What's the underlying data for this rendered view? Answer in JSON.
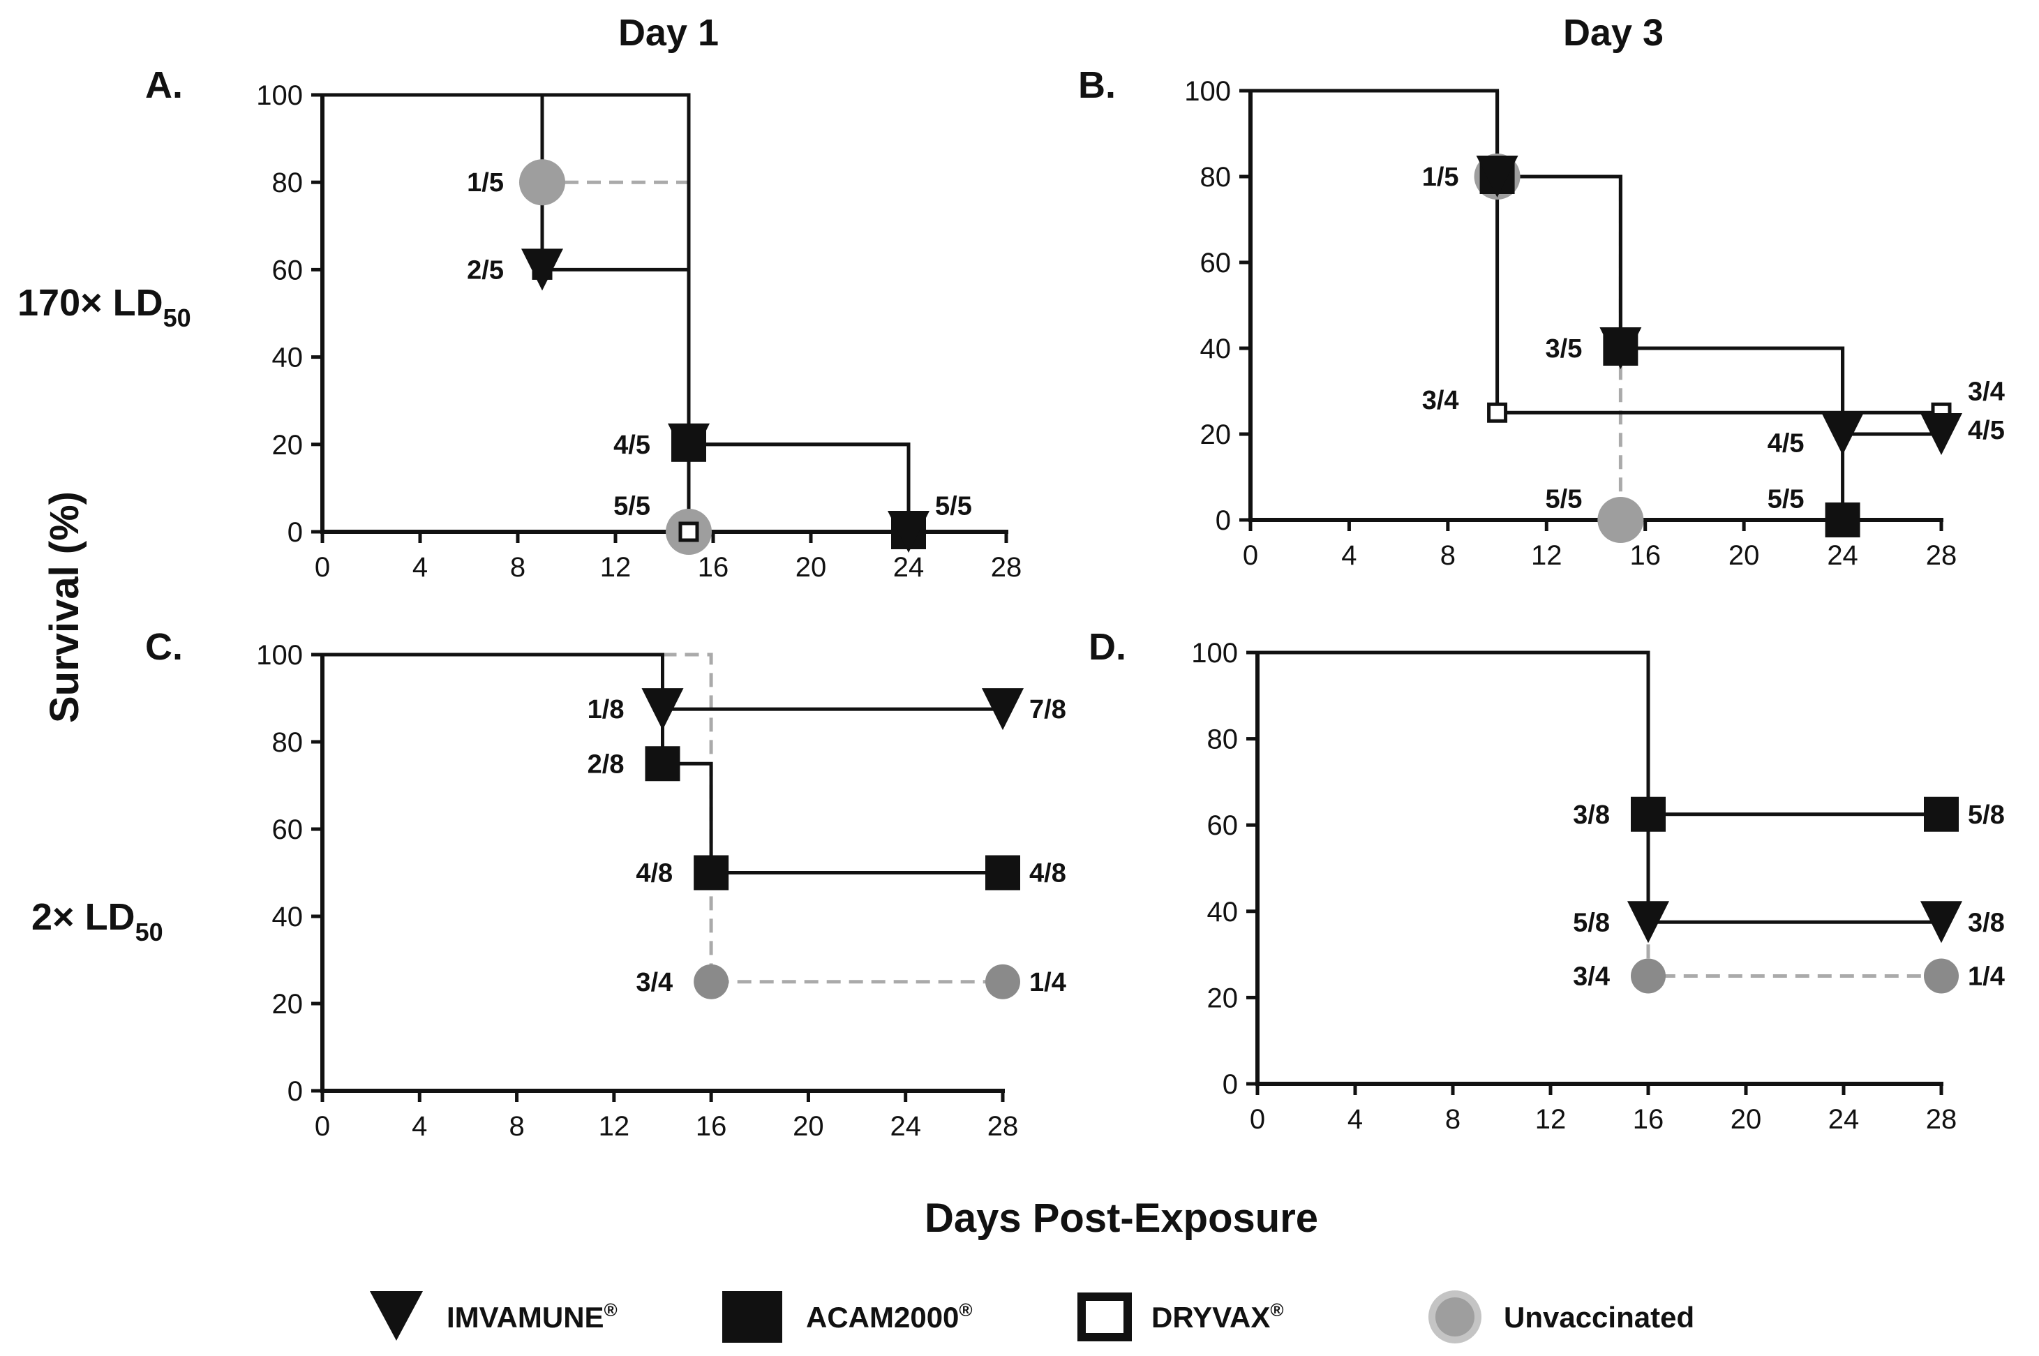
{
  "figure": {
    "column_titles": [
      "Day 1",
      "Day 3"
    ],
    "row_labels": [
      {
        "main": "170× LD",
        "sub": "50"
      },
      {
        "main": "2× LD",
        "sub": "50"
      }
    ],
    "y_axis_title": "Survival (%)",
    "x_axis_title": "Days Post-Exposure",
    "colors": {
      "black": "#111111",
      "gray": "#9e9e9e",
      "gray_dark": "#8a8a8a",
      "gray_ring": "#c4c4c4",
      "dash": "#aaaaaa",
      "white": "#ffffff"
    }
  },
  "legend": {
    "items": [
      {
        "label": "IMVAMUNE",
        "sup": "®",
        "marker": "down-triangle-icon"
      },
      {
        "label": "ACAM2000",
        "sup": "®",
        "marker": "filled-square-icon"
      },
      {
        "label": "DRYVAX",
        "sup": "®",
        "marker": "open-square-icon"
      },
      {
        "label": "Unvaccinated",
        "sup": "",
        "marker": "gray-circle-icon"
      }
    ]
  },
  "chart_data": [
    {
      "panel": "A.",
      "type": "line",
      "step": true,
      "xlabel": "Days Post-Exposure",
      "ylabel": "Survival (%)",
      "xlim": [
        0,
        28
      ],
      "ylim": [
        0,
        100
      ],
      "xticks": [
        0,
        4,
        8,
        12,
        16,
        20,
        24,
        28
      ],
      "yticks": [
        0,
        20,
        40,
        60,
        80,
        100
      ],
      "series": [
        {
          "name": "IMVAMUNE",
          "marker": "triangle",
          "points": [
            [
              0,
              100
            ],
            [
              15,
              100
            ],
            [
              15,
              20
            ],
            [
              24,
              20
            ],
            [
              24,
              0
            ]
          ],
          "marked": [
            [
              15,
              20
            ],
            [
              24,
              0
            ]
          ]
        },
        {
          "name": "ACAM2000",
          "marker": "square",
          "points": [
            [
              0,
              100
            ],
            [
              15,
              100
            ],
            [
              15,
              20
            ],
            [
              24,
              20
            ],
            [
              24,
              0
            ]
          ],
          "marked": [
            [
              15,
              20
            ],
            [
              24,
              0
            ]
          ]
        },
        {
          "name": "DRYVAX",
          "marker": "open-square",
          "points": [
            [
              0,
              100
            ],
            [
              9,
              100
            ],
            [
              9,
              60
            ],
            [
              15,
              60
            ],
            [
              15,
              0
            ]
          ],
          "marked": [
            [
              9,
              60
            ],
            [
              15,
              0
            ]
          ]
        },
        {
          "name": "IMVAMUNE-early",
          "marker": "triangle",
          "points": [
            [
              9,
              60
            ]
          ],
          "marked": [
            [
              9,
              60
            ]
          ]
        },
        {
          "name": "Unvaccinated",
          "marker": "circle",
          "dashed": true,
          "points": [
            [
              9,
              80
            ],
            [
              15,
              80
            ],
            [
              15,
              0
            ]
          ],
          "marked": [
            [
              9,
              80
            ],
            [
              15,
              0
            ]
          ]
        }
      ],
      "annotations": [
        {
          "text": "1/5",
          "x": 9,
          "y": 80,
          "side": "left"
        },
        {
          "text": "2/5",
          "x": 9,
          "y": 60,
          "side": "left"
        },
        {
          "text": "4/5",
          "x": 15,
          "y": 20,
          "side": "left"
        },
        {
          "text": "5/5",
          "x": 15,
          "y": 6,
          "side": "left"
        },
        {
          "text": "5/5",
          "x": 24,
          "y": 6,
          "side": "right"
        }
      ]
    },
    {
      "panel": "B.",
      "type": "line",
      "step": true,
      "xlabel": "Days Post-Exposure",
      "ylabel": "Survival (%)",
      "xlim": [
        0,
        28
      ],
      "ylim": [
        0,
        100
      ],
      "xticks": [
        0,
        4,
        8,
        12,
        16,
        20,
        24,
        28
      ],
      "yticks": [
        0,
        20,
        40,
        60,
        80,
        100
      ],
      "series": [
        {
          "name": "ACAM2000",
          "marker": "square",
          "points": [
            [
              0,
              100
            ],
            [
              10,
              100
            ],
            [
              10,
              80
            ],
            [
              15,
              80
            ],
            [
              15,
              40
            ],
            [
              24,
              40
            ],
            [
              24,
              0
            ]
          ],
          "marked": [
            [
              10,
              80
            ],
            [
              15,
              40
            ],
            [
              24,
              0
            ]
          ]
        },
        {
          "name": "IMVAMUNE",
          "marker": "triangle",
          "points": [
            [
              10,
              80
            ],
            [
              15,
              80
            ],
            [
              15,
              40
            ],
            [
              24,
              40
            ],
            [
              24,
              20
            ],
            [
              28,
              20
            ]
          ],
          "marked": [
            [
              10,
              80
            ],
            [
              15,
              40
            ],
            [
              24,
              20
            ],
            [
              28,
              20
            ]
          ]
        },
        {
          "name": "DRYVAX",
          "marker": "open-square",
          "points": [
            [
              10,
              100
            ],
            [
              10,
              25
            ],
            [
              28,
              25
            ]
          ],
          "marked": [
            [
              10,
              25
            ],
            [
              28,
              25
            ]
          ]
        },
        {
          "name": "Unvaccinated",
          "marker": "circle",
          "dashed": true,
          "points": [
            [
              10,
              80
            ],
            [
              15,
              80
            ],
            [
              15,
              0
            ]
          ],
          "marked": [
            [
              10,
              80
            ],
            [
              15,
              0
            ]
          ]
        },
        {
          "name": "Zero-line",
          "marker": "none",
          "points": [
            [
              0,
              0
            ],
            [
              28,
              0
            ]
          ],
          "marked": []
        }
      ],
      "annotations": [
        {
          "text": "1/5",
          "x": 10,
          "y": 80,
          "side": "left"
        },
        {
          "text": "3/5",
          "x": 15,
          "y": 40,
          "side": "left"
        },
        {
          "text": "3/4",
          "x": 10,
          "y": 28,
          "side": "left"
        },
        {
          "text": "4/5",
          "x": 24,
          "y": 18,
          "side": "left"
        },
        {
          "text": "5/5",
          "x": 15,
          "y": 5,
          "side": "left"
        },
        {
          "text": "5/5",
          "x": 24,
          "y": 5,
          "side": "left"
        },
        {
          "text": "3/4",
          "x": 28,
          "y": 30,
          "side": "right"
        },
        {
          "text": "4/5",
          "x": 28,
          "y": 21,
          "side": "right"
        }
      ]
    },
    {
      "panel": "C.",
      "type": "line",
      "step": true,
      "xlabel": "Days Post-Exposure",
      "ylabel": "Survival (%)",
      "xlim": [
        0,
        28
      ],
      "ylim": [
        0,
        100
      ],
      "xticks": [
        0,
        4,
        8,
        12,
        16,
        20,
        24,
        28
      ],
      "yticks": [
        0,
        20,
        40,
        60,
        80,
        100
      ],
      "series": [
        {
          "name": "IMVAMUNE",
          "marker": "triangle",
          "points": [
            [
              0,
              100
            ],
            [
              14,
              100
            ],
            [
              14,
              87.5
            ],
            [
              28,
              87.5
            ]
          ],
          "marked": [
            [
              14,
              87.5
            ],
            [
              28,
              87.5
            ]
          ]
        },
        {
          "name": "ACAM2000",
          "marker": "square",
          "points": [
            [
              14,
              87.5
            ],
            [
              14,
              75
            ],
            [
              16,
              75
            ],
            [
              16,
              50
            ],
            [
              28,
              50
            ]
          ],
          "marked": [
            [
              14,
              75
            ],
            [
              16,
              50
            ],
            [
              28,
              50
            ]
          ]
        },
        {
          "name": "Unvaccinated",
          "marker": "circle-dark",
          "dashed": true,
          "points": [
            [
              14,
              100
            ],
            [
              16,
              100
            ],
            [
              16,
              25
            ],
            [
              28,
              25
            ]
          ],
          "marked": [
            [
              16,
              25
            ],
            [
              28,
              25
            ]
          ]
        }
      ],
      "annotations": [
        {
          "text": "1/8",
          "x": 14,
          "y": 87.5,
          "side": "left"
        },
        {
          "text": "2/8",
          "x": 14,
          "y": 75,
          "side": "left"
        },
        {
          "text": "4/8",
          "x": 16,
          "y": 50,
          "side": "left"
        },
        {
          "text": "3/4",
          "x": 16,
          "y": 25,
          "side": "left"
        },
        {
          "text": "7/8",
          "x": 28,
          "y": 87.5,
          "side": "right"
        },
        {
          "text": "4/8",
          "x": 28,
          "y": 50,
          "side": "right"
        },
        {
          "text": "1/4",
          "x": 28,
          "y": 25,
          "side": "right"
        }
      ]
    },
    {
      "panel": "D.",
      "type": "line",
      "step": true,
      "xlabel": "Days Post-Exposure",
      "ylabel": "Survival (%)",
      "xlim": [
        0,
        28
      ],
      "ylim": [
        0,
        100
      ],
      "xticks": [
        0,
        4,
        8,
        12,
        16,
        20,
        24,
        28
      ],
      "yticks": [
        0,
        20,
        40,
        60,
        80,
        100
      ],
      "series": [
        {
          "name": "ACAM2000",
          "marker": "square",
          "points": [
            [
              0,
              100
            ],
            [
              16,
              100
            ],
            [
              16,
              62.5
            ],
            [
              28,
              62.5
            ]
          ],
          "marked": [
            [
              16,
              62.5
            ],
            [
              28,
              62.5
            ]
          ]
        },
        {
          "name": "IMVAMUNE",
          "marker": "triangle",
          "points": [
            [
              16,
              62.5
            ],
            [
              16,
              37.5
            ],
            [
              28,
              37.5
            ]
          ],
          "marked": [
            [
              16,
              37.5
            ],
            [
              28,
              37.5
            ]
          ]
        },
        {
          "name": "Unvaccinated",
          "marker": "circle-dark",
          "dashed": true,
          "points": [
            [
              16,
              37.5
            ],
            [
              16,
              25
            ],
            [
              28,
              25
            ]
          ],
          "marked": [
            [
              16,
              25
            ],
            [
              28,
              25
            ]
          ]
        }
      ],
      "annotations": [
        {
          "text": "3/8",
          "x": 16,
          "y": 62.5,
          "side": "left"
        },
        {
          "text": "5/8",
          "x": 16,
          "y": 37.5,
          "side": "left"
        },
        {
          "text": "3/4",
          "x": 16,
          "y": 25,
          "side": "left"
        },
        {
          "text": "5/8",
          "x": 28,
          "y": 62.5,
          "side": "right"
        },
        {
          "text": "3/8",
          "x": 28,
          "y": 37.5,
          "side": "right"
        },
        {
          "text": "1/4",
          "x": 28,
          "y": 25,
          "side": "right"
        }
      ]
    }
  ]
}
